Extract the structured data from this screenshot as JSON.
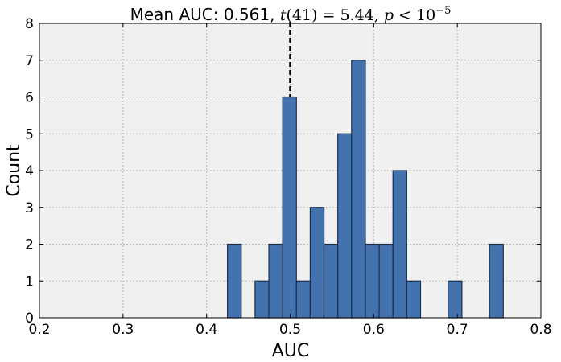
{
  "chart_data": {
    "type": "bar",
    "title_parts": {
      "prefix": "Mean AUC: 0.561, ",
      "t": "t",
      "df": "(41) = 5.44, ",
      "p": "p",
      "lt": " < 10",
      "exp": "−5"
    },
    "xlabel": "AUC",
    "ylabel": "Count",
    "xlim": [
      0.2,
      0.8
    ],
    "ylim": [
      0,
      8
    ],
    "xticks": [
      "0.2",
      "0.3",
      "0.4",
      "0.5",
      "0.6",
      "0.7",
      "0.8"
    ],
    "yticks": [
      "0",
      "1",
      "2",
      "3",
      "4",
      "5",
      "6",
      "7",
      "8"
    ],
    "grid": true,
    "mean_line": 0.5,
    "bin_width": 0.0165,
    "bins": [
      {
        "x": 0.425,
        "count": 2
      },
      {
        "x": 0.458,
        "count": 1
      },
      {
        "x": 0.4745,
        "count": 2
      },
      {
        "x": 0.491,
        "count": 6
      },
      {
        "x": 0.5075,
        "count": 1
      },
      {
        "x": 0.524,
        "count": 3
      },
      {
        "x": 0.5405,
        "count": 2
      },
      {
        "x": 0.557,
        "count": 5
      },
      {
        "x": 0.5735,
        "count": 7
      },
      {
        "x": 0.59,
        "count": 2
      },
      {
        "x": 0.6065,
        "count": 2
      },
      {
        "x": 0.623,
        "count": 4
      },
      {
        "x": 0.6395,
        "count": 1
      },
      {
        "x": 0.689,
        "count": 1
      },
      {
        "x": 0.7385,
        "count": 2
      }
    ],
    "colors": {
      "bar_fill": "#4472ae",
      "bar_edge": "#1c2e4a",
      "plot_bg": "#f0f0f0",
      "grid": "#a9a9a9",
      "mean_line": "#000000"
    }
  }
}
